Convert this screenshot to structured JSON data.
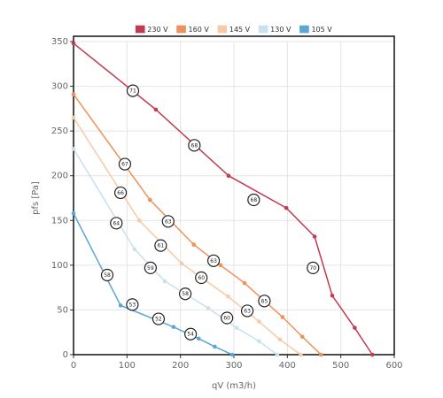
{
  "chart_data": {
    "type": "line",
    "xlabel": "qV (m3/h)",
    "ylabel": "pfs [Pa]",
    "xlim": [
      0,
      600
    ],
    "xticks": [
      0,
      100,
      200,
      300,
      400,
      500,
      600
    ],
    "ylim": [
      0,
      350
    ],
    "yticks": [
      0,
      50,
      100,
      150,
      200,
      250,
      300,
      350
    ],
    "grid": true,
    "legend": "top",
    "series": [
      {
        "name": "230 V",
        "color": "#c23b50",
        "x": [
          0,
          154,
          290,
          398,
          451,
          484,
          526,
          559
        ],
        "values": [
          348,
          274,
          200,
          164,
          132,
          66,
          30,
          0
        ]
      },
      {
        "name": "160 V",
        "color": "#f0905a",
        "x": [
          0,
          143,
          225,
          275,
          320,
          391,
          428,
          463
        ],
        "values": [
          291,
          173,
          123,
          100,
          80,
          42,
          20,
          0
        ]
      },
      {
        "name": "145 V",
        "color": "#f8c9a6",
        "x": [
          0,
          123,
          202,
          289,
          347,
          386,
          425
        ],
        "values": [
          265,
          150,
          102,
          65,
          37,
          17,
          0
        ]
      },
      {
        "name": "130 V",
        "color": "#c9e0ef",
        "x": [
          0,
          114,
          171,
          252,
          305,
          347,
          381
        ],
        "values": [
          230,
          118,
          82,
          52,
          30,
          15,
          0
        ]
      },
      {
        "name": "105 V",
        "color": "#5aa6d6",
        "x": [
          0,
          88,
          187,
          234,
          264,
          297
        ],
        "values": [
          158,
          55,
          31,
          18,
          9,
          0
        ]
      }
    ],
    "annotations": [
      {
        "x": 111,
        "y": 295,
        "label": "71"
      },
      {
        "x": 226,
        "y": 234,
        "label": "68"
      },
      {
        "x": 337,
        "y": 173,
        "label": "68"
      },
      {
        "x": 448,
        "y": 97,
        "label": "70"
      },
      {
        "x": 96,
        "y": 213,
        "label": "67"
      },
      {
        "x": 177,
        "y": 149,
        "label": "63"
      },
      {
        "x": 262,
        "y": 105,
        "label": "63"
      },
      {
        "x": 357,
        "y": 60,
        "label": "65"
      },
      {
        "x": 88,
        "y": 181,
        "label": "66"
      },
      {
        "x": 163,
        "y": 122,
        "label": "61"
      },
      {
        "x": 239,
        "y": 86,
        "label": "60"
      },
      {
        "x": 325,
        "y": 49,
        "label": "63"
      },
      {
        "x": 80,
        "y": 147,
        "label": "64"
      },
      {
        "x": 144,
        "y": 97,
        "label": "59"
      },
      {
        "x": 209,
        "y": 68,
        "label": "58"
      },
      {
        "x": 287,
        "y": 41,
        "label": "60"
      },
      {
        "x": 63,
        "y": 89,
        "label": "58"
      },
      {
        "x": 110,
        "y": 56,
        "label": "53"
      },
      {
        "x": 159,
        "y": 40,
        "label": "52"
      },
      {
        "x": 219,
        "y": 23,
        "label": "54"
      }
    ]
  }
}
